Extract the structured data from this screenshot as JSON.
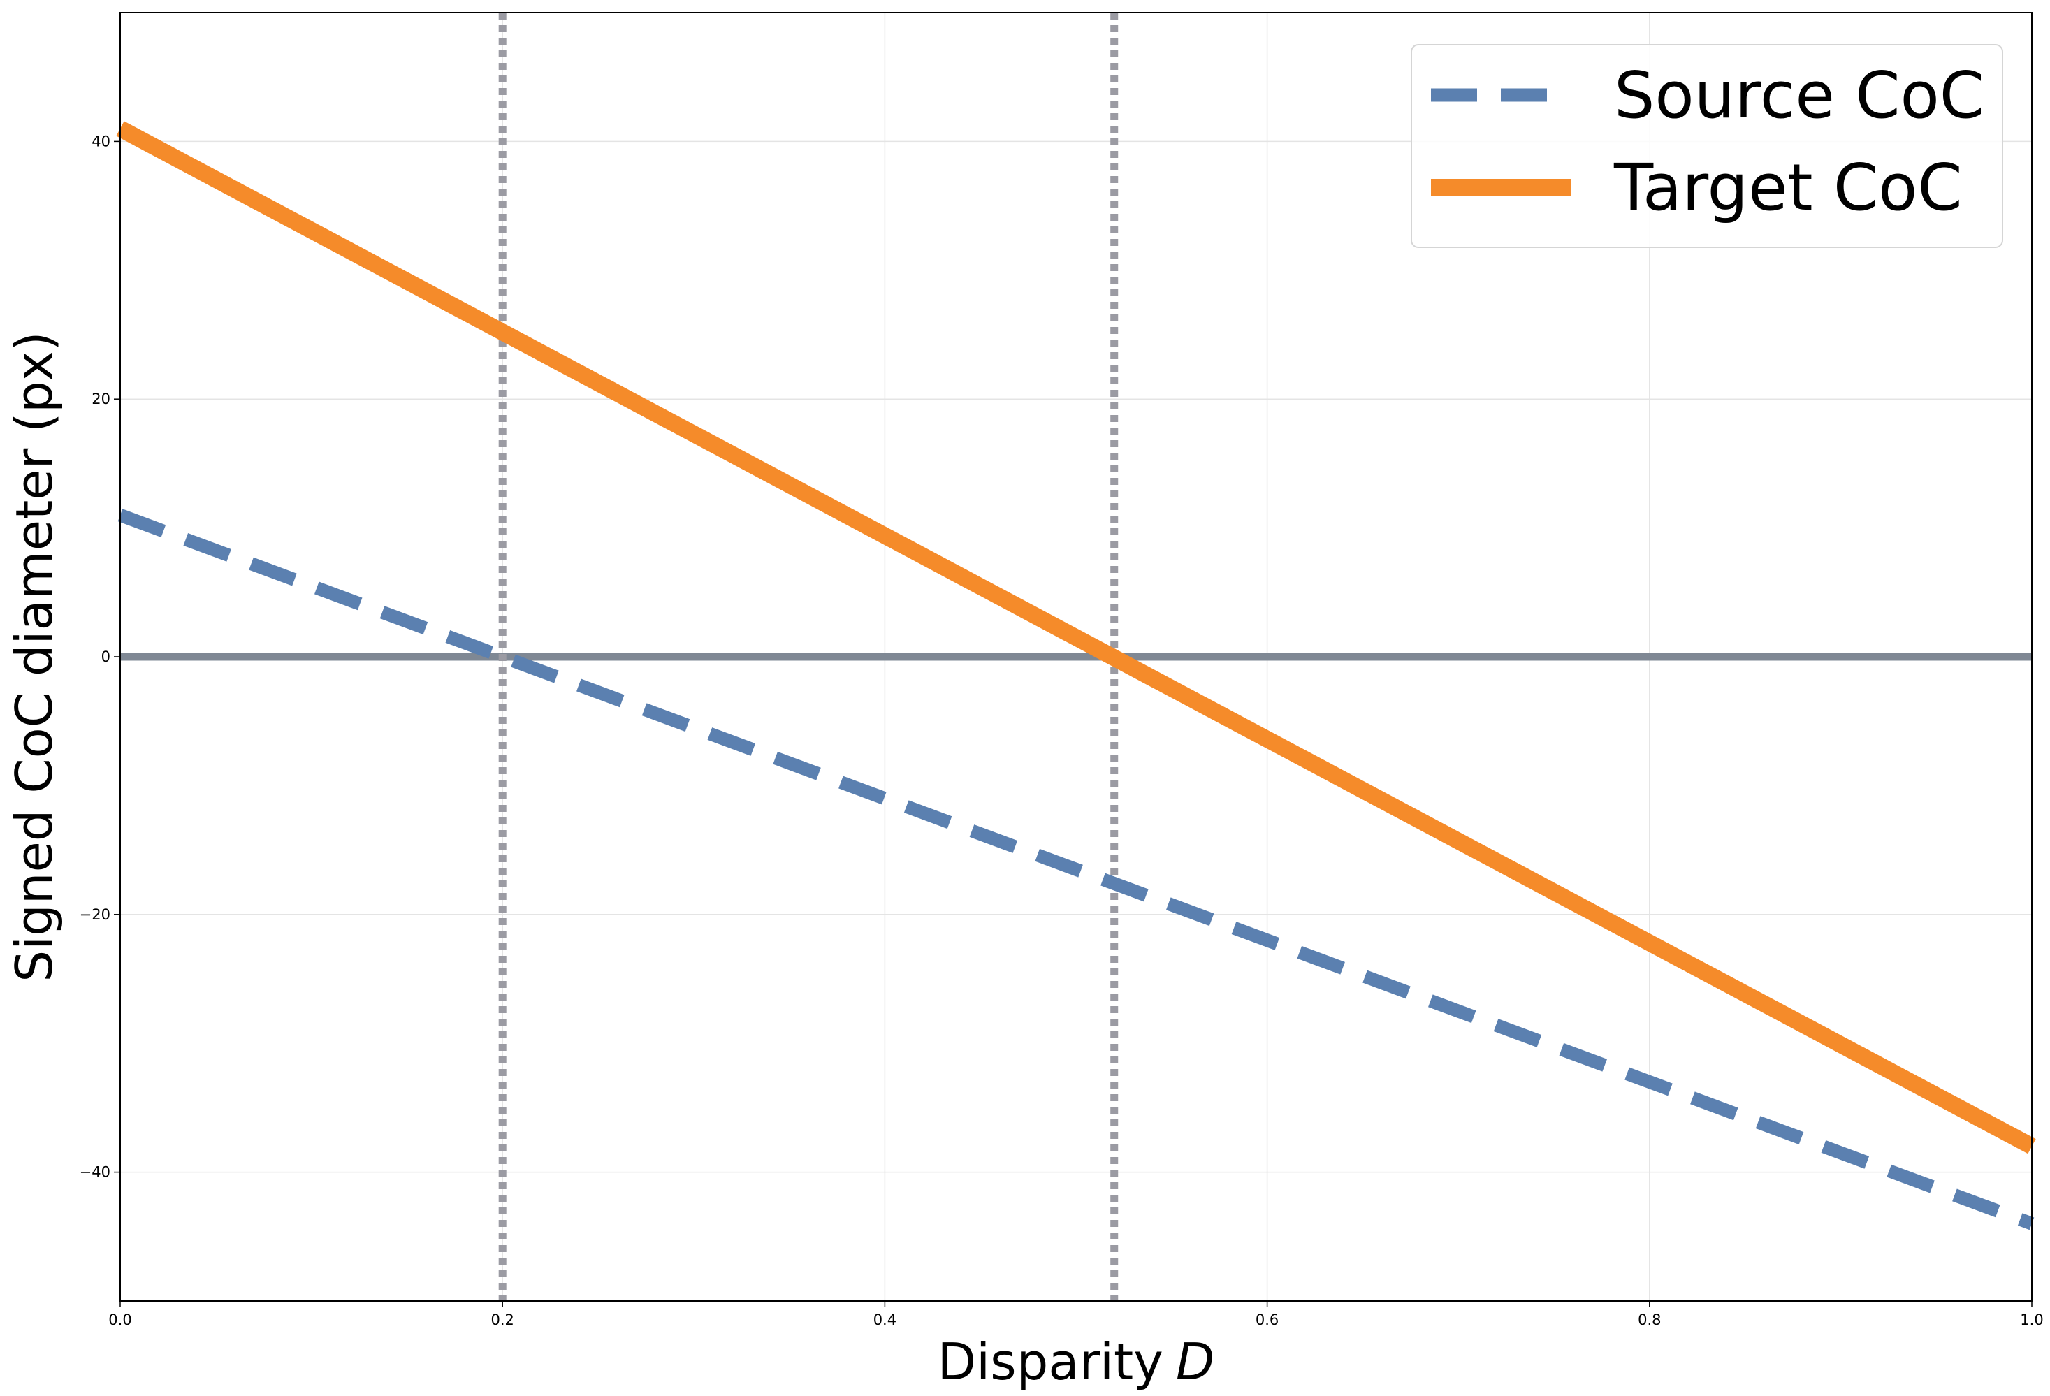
{
  "chart_data": {
    "type": "line",
    "xlabel": "Disparity",
    "xlabel_var": "D",
    "ylabel": "Signed CoC diameter (px)",
    "xlim": [
      0.0,
      1.0
    ],
    "ylim": [
      -50,
      50
    ],
    "x_ticks": [
      0.0,
      0.2,
      0.4,
      0.6,
      0.8,
      1.0
    ],
    "x_tick_labels": [
      "0.0",
      "0.2",
      "0.4",
      "0.6",
      "0.8",
      "1.0"
    ],
    "y_ticks": [
      -40,
      -20,
      0,
      20,
      40
    ],
    "y_tick_labels": [
      "−40",
      "−20",
      "0",
      "20",
      "40"
    ],
    "grid": true,
    "legend_position": "upper right",
    "series": [
      {
        "name": "Source CoC",
        "style": "dashed",
        "color": "#5b80b0",
        "x": [
          0.0,
          1.0
        ],
        "y": [
          11,
          -44
        ]
      },
      {
        "name": "Target CoC",
        "style": "solid",
        "color": "#f58b2a",
        "x": [
          0.0,
          1.0
        ],
        "y": [
          41,
          -38
        ]
      }
    ],
    "reference_lines": {
      "horizontal": {
        "y": 0,
        "color": "#7f8894"
      },
      "vertical": [
        {
          "x": 0.2,
          "color": "#9b9ba3"
        },
        {
          "x": 0.52,
          "color": "#9b9ba3"
        }
      ]
    }
  }
}
